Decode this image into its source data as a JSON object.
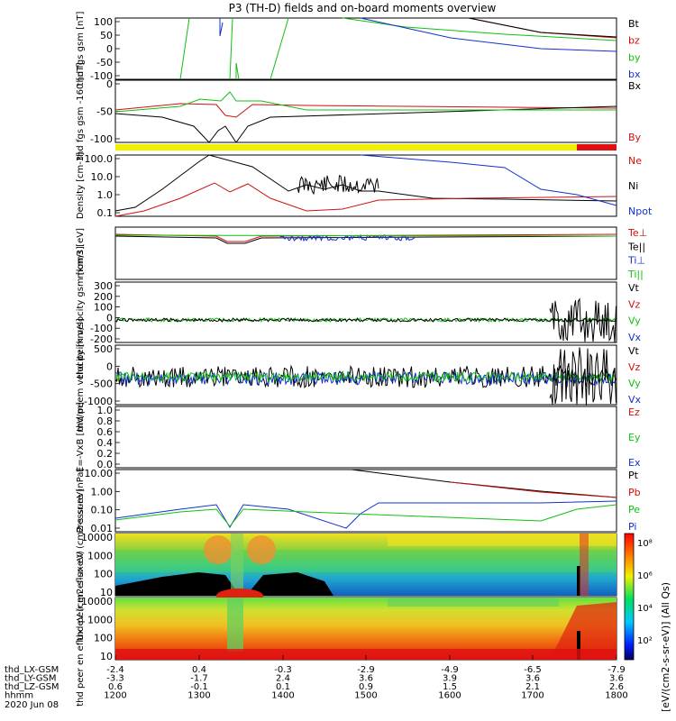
{
  "title": "P3 (TH-D) fields and on-board moments overview",
  "colors": {
    "black": "#000000",
    "red": "#d01010",
    "green": "#10c010",
    "blue": "#1030d0",
    "yellow": "#f0f000",
    "bar_red": "#e01010"
  },
  "chart_data": [
    {
      "type": "line",
      "panel": "fgs_gsm",
      "ylabel": "thd fgs gsm [nT]",
      "yticks": [
        100,
        50,
        0,
        -50,
        -100
      ],
      "ylim": [
        -100,
        100
      ],
      "legend": [
        "Bt",
        "bz",
        "by",
        "bx"
      ],
      "legend_colors": [
        "black",
        "red",
        "green",
        "blue"
      ]
    },
    {
      "type": "line",
      "panel": "fgs_gsm_160",
      "ylabel": "thd fgs gsm -160 [nT]",
      "yticks": [
        0,
        -50,
        -100
      ],
      "ylim": [
        -125,
        25
      ],
      "legend": [
        "Bx",
        "By"
      ],
      "legend_colors": [
        "black",
        "red"
      ]
    },
    {
      "type": "line",
      "panel": "density",
      "ylabel": "Density [cm-3]",
      "scale": "log",
      "yticks": [
        "100.0",
        "10.0",
        "1.0",
        "0.1"
      ],
      "ylim": [
        0.1,
        100
      ],
      "legend": [
        "Ne",
        "Ni",
        "Npot"
      ],
      "legend_colors": [
        "red",
        "black",
        "blue"
      ]
    },
    {
      "type": "line",
      "panel": "mom_temp",
      "ylabel": "mom3 [eV]",
      "scale": "log",
      "legend": [
        "Te⊥",
        "Te||",
        "Ti⊥",
        "Ti||"
      ],
      "legend_colors": [
        "red",
        "black",
        "blue",
        "green"
      ]
    },
    {
      "type": "line",
      "panel": "peim_velocity",
      "ylabel": "thd peim velocity gsm [km/s]",
      "yticks": [
        300,
        200,
        100,
        0,
        -100,
        -200
      ],
      "ylim": [
        -200,
        300
      ],
      "legend": [
        "Vt",
        "Vz",
        "Vy",
        "Vx"
      ],
      "legend_colors": [
        "black",
        "red",
        "green",
        "blue"
      ]
    },
    {
      "type": "line",
      "panel": "peem_velocity",
      "ylabel": "thd peem velocity [km/s]",
      "yticks": [
        500,
        0,
        -500,
        -1000
      ],
      "ylim": [
        -1000,
        500
      ],
      "legend": [
        "Vt",
        "Vz",
        "Vy",
        "Vx"
      ],
      "legend_colors": [
        "black",
        "red",
        "green",
        "blue"
      ]
    },
    {
      "type": "line",
      "panel": "efield",
      "ylabel": "E=-VxB [mV/m]",
      "yticks": [
        "1.0",
        "0.8",
        "0.6",
        "0.4",
        "0.2",
        "0.0"
      ],
      "ylim": [
        0,
        1
      ],
      "legend": [
        "Ez",
        "Ey",
        "Ex"
      ],
      "legend_colors": [
        "red",
        "green",
        "blue"
      ]
    },
    {
      "type": "line",
      "panel": "pressure",
      "ylabel": "Pressure [nPa]",
      "scale": "log",
      "yticks": [
        "10.00",
        "1.00",
        "0.10",
        "0.01"
      ],
      "ylim": [
        0.003,
        20
      ],
      "legend": [
        "Pt",
        "Pb",
        "Pe",
        "Pi"
      ],
      "legend_colors": [
        "black",
        "red",
        "green",
        "blue"
      ]
    },
    {
      "type": "heatmap",
      "panel": "peir_spectrogram",
      "ylabel": "thd peir en eflux eV (cm2-s-sr-eV)",
      "yticks": [
        "10000",
        "1000",
        "100",
        "10"
      ],
      "scale": "log"
    },
    {
      "type": "heatmap",
      "panel": "peer_spectrogram",
      "ylabel": "thd peer en eflux eV (cm2-s-sr-eV)",
      "yticks": [
        "10000",
        "1000",
        "100",
        "10"
      ],
      "scale": "log"
    }
  ],
  "colorbar": {
    "label": "[eV/(cm2-s-sr-eV)] (All Qs)",
    "ticks": [
      "10⁸",
      "10⁶",
      "10⁴",
      "10²"
    ]
  },
  "xaxis": {
    "rows": [
      {
        "label": "thd_LX-GSM",
        "values": [
          "-2.4",
          "0.4",
          "-0.3",
          "-2.9",
          "-4.9",
          "-6.5",
          "-7.9"
        ]
      },
      {
        "label": "thd_LY-GSM",
        "values": [
          "-3.3",
          "-1.7",
          "2.4",
          "3.6",
          "3.9",
          "3.6",
          "3.6"
        ]
      },
      {
        "label": "thd_LZ-GSM",
        "values": [
          "0.6",
          "-0.1",
          "0.1",
          "0.9",
          "1.5",
          "2.1",
          "2.6"
        ]
      },
      {
        "label": "hhmm",
        "values": [
          "1200",
          "1300",
          "1400",
          "1500",
          "1600",
          "1700",
          "1800"
        ]
      }
    ],
    "date": "2020 Jun 08"
  }
}
